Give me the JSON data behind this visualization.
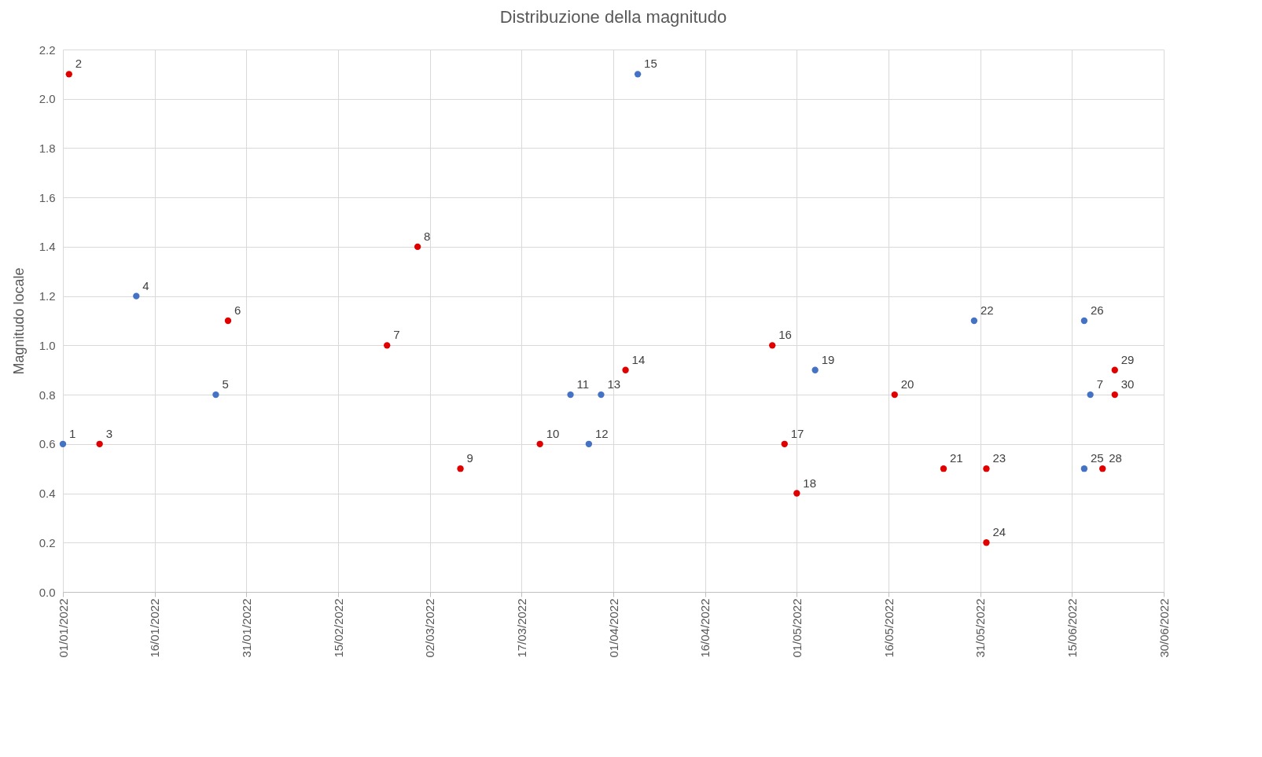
{
  "chart_data": {
    "type": "scatter",
    "title": "Distribuzione della magnitudo",
    "ylabel": "Magnitudo locale",
    "xlim": [
      "2022-01-01",
      "2022-06-30"
    ],
    "xticks": [
      {
        "value": "2022-01-01",
        "label": "01/01/2022"
      },
      {
        "value": "2022-01-16",
        "label": "16/01/2022"
      },
      {
        "value": "2022-01-31",
        "label": "31/01/2022"
      },
      {
        "value": "2022-02-15",
        "label": "15/02/2022"
      },
      {
        "value": "2022-03-02",
        "label": "02/03/2022"
      },
      {
        "value": "2022-03-17",
        "label": "17/03/2022"
      },
      {
        "value": "2022-04-01",
        "label": "01/04/2022"
      },
      {
        "value": "2022-04-16",
        "label": "16/04/2022"
      },
      {
        "value": "2022-05-01",
        "label": "01/05/2022"
      },
      {
        "value": "2022-05-16",
        "label": "16/05/2022"
      },
      {
        "value": "2022-05-31",
        "label": "31/05/2022"
      },
      {
        "value": "2022-06-15",
        "label": "15/06/2022"
      },
      {
        "value": "2022-06-30",
        "label": "30/06/2022"
      }
    ],
    "ylim": [
      0,
      2.2
    ],
    "yticks": [
      {
        "value": 0,
        "label": "0.0"
      },
      {
        "value": 0.2,
        "label": "0.2"
      },
      {
        "value": 0.4,
        "label": "0.4"
      },
      {
        "value": 0.6,
        "label": "0.6"
      },
      {
        "value": 0.8,
        "label": "0.8"
      },
      {
        "value": 1,
        "label": "1.0"
      },
      {
        "value": 1.2,
        "label": "1.2"
      },
      {
        "value": 1.4,
        "label": "1.4"
      },
      {
        "value": 1.6,
        "label": "1.6"
      },
      {
        "value": 1.8,
        "label": "1.8"
      },
      {
        "value": 2,
        "label": "2.0"
      },
      {
        "value": 2.2,
        "label": "2.2"
      }
    ],
    "grid": true,
    "marker": "circle",
    "series": [
      {
        "color": "#e00000",
        "x": [
          "2022-01-02",
          "2022-01-07",
          "2022-01-28",
          "2022-02-23",
          "2022-02-28",
          "2022-03-07",
          "2022-03-20",
          "2022-04-03",
          "2022-04-27",
          "2022-04-29",
          "2022-05-01",
          "2022-05-17",
          "2022-05-25",
          "2022-06-01",
          "2022-06-01",
          "2022-06-20",
          "2022-06-22",
          "2022-06-22"
        ],
        "values": [
          2.1,
          0.6,
          1.1,
          1.0,
          1.4,
          0.5,
          0.6,
          0.9,
          1.0,
          0.6,
          0.4,
          0.8,
          0.5,
          0.5,
          0.2,
          0.5,
          0.9,
          0.8
        ]
      },
      {
        "color": "#4472c4",
        "x": [
          "2022-01-01",
          "2022-01-13",
          "2022-01-26",
          "2022-03-25",
          "2022-03-28",
          "2022-03-30",
          "2022-04-05",
          "2022-05-04",
          "2022-05-30",
          "2022-06-17",
          "2022-06-17",
          "2022-06-18"
        ],
        "values": [
          0.6,
          1.2,
          0.8,
          0.8,
          0.6,
          0.8,
          2.1,
          0.9,
          1.1,
          0.5,
          1.1,
          0.8
        ]
      }
    ],
    "annotations": [
      {
        "text": "1",
        "x": "2022-01-01",
        "y": 0.6
      },
      {
        "text": "2",
        "x": "2022-01-02",
        "y": 2.1
      },
      {
        "text": "3",
        "x": "2022-01-07",
        "y": 0.6
      },
      {
        "text": "4",
        "x": "2022-01-13",
        "y": 1.2
      },
      {
        "text": "5",
        "x": "2022-01-26",
        "y": 0.8
      },
      {
        "text": "6",
        "x": "2022-01-28",
        "y": 1.1
      },
      {
        "text": "7",
        "x": "2022-02-23",
        "y": 1.0
      },
      {
        "text": "8",
        "x": "2022-02-28",
        "y": 1.4
      },
      {
        "text": "9",
        "x": "2022-03-07",
        "y": 0.5
      },
      {
        "text": "10",
        "x": "2022-03-20",
        "y": 0.6
      },
      {
        "text": "11",
        "x": "2022-03-25",
        "y": 0.8
      },
      {
        "text": "12",
        "x": "2022-03-28",
        "y": 0.6
      },
      {
        "text": "13",
        "x": "2022-03-30",
        "y": 0.8
      },
      {
        "text": "14",
        "x": "2022-04-03",
        "y": 0.9
      },
      {
        "text": "15",
        "x": "2022-04-05",
        "y": 2.1
      },
      {
        "text": "16",
        "x": "2022-04-27",
        "y": 1.0
      },
      {
        "text": "17",
        "x": "2022-04-29",
        "y": 0.6
      },
      {
        "text": "18",
        "x": "2022-05-01",
        "y": 0.4
      },
      {
        "text": "19",
        "x": "2022-05-04",
        "y": 0.9
      },
      {
        "text": "20",
        "x": "2022-05-17",
        "y": 0.8
      },
      {
        "text": "21",
        "x": "2022-05-25",
        "y": 0.5
      },
      {
        "text": "22",
        "x": "2022-05-30",
        "y": 1.1
      },
      {
        "text": "23",
        "x": "2022-06-01",
        "y": 0.5
      },
      {
        "text": "24",
        "x": "2022-06-01",
        "y": 0.2
      },
      {
        "text": "25",
        "x": "2022-06-17",
        "y": 0.5
      },
      {
        "text": "26",
        "x": "2022-06-17",
        "y": 1.1
      },
      {
        "text": "7",
        "x": "2022-06-18",
        "y": 0.8
      },
      {
        "text": "28",
        "x": "2022-06-20",
        "y": 0.5
      },
      {
        "text": "29",
        "x": "2022-06-22",
        "y": 0.9
      },
      {
        "text": "30",
        "x": "2022-06-22",
        "y": 0.8
      }
    ]
  }
}
